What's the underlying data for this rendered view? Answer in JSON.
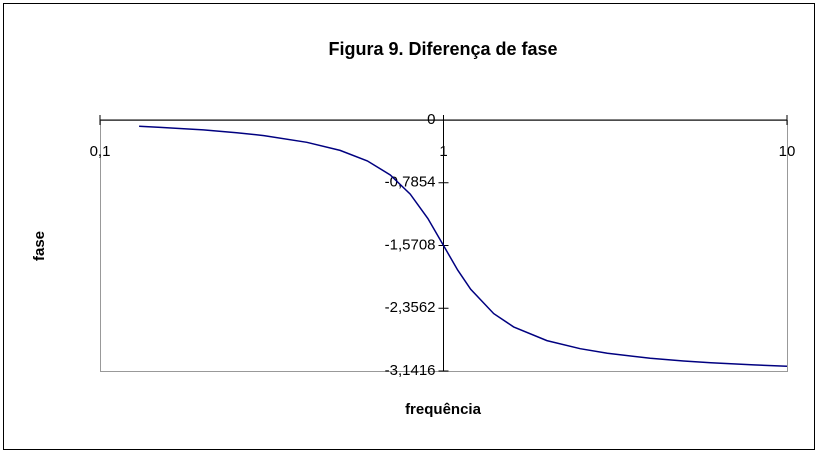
{
  "chart_data": {
    "type": "line",
    "title": "Figura 9. Diferença de fase",
    "xlabel": "frequência",
    "ylabel": "fase",
    "x": [
      0.13,
      0.15,
      0.2,
      0.25,
      0.3,
      0.4,
      0.5,
      0.6,
      0.7,
      0.8,
      0.9,
      1,
      1.1,
      1.2,
      1.4,
      1.6,
      2,
      2.5,
      3,
      4,
      5,
      6,
      8,
      10
    ],
    "values": [
      -0.079,
      -0.092,
      -0.124,
      -0.159,
      -0.195,
      -0.279,
      -0.381,
      -0.512,
      -0.689,
      -0.927,
      -1.232,
      -1.571,
      -1.879,
      -2.119,
      -2.423,
      -2.59,
      -2.761,
      -2.863,
      -2.92,
      -2.983,
      -3.017,
      -3.039,
      -3.065,
      -3.081
    ],
    "color": "#000080",
    "xscale": "log",
    "xlim": [
      0.1,
      10
    ],
    "xticks": [
      {
        "value": 0.1,
        "label": "0,1"
      },
      1,
      10
    ],
    "ylim": [
      -3.1416,
      0
    ],
    "yticks": [
      0,
      {
        "value": -0.7854,
        "label": "-0,7854"
      },
      {
        "value": -1.5708,
        "label": "-1,5708"
      },
      {
        "value": -2.3562,
        "label": "-2,3562"
      },
      {
        "value": -3.1416,
        "label": "-3,1416"
      }
    ]
  }
}
